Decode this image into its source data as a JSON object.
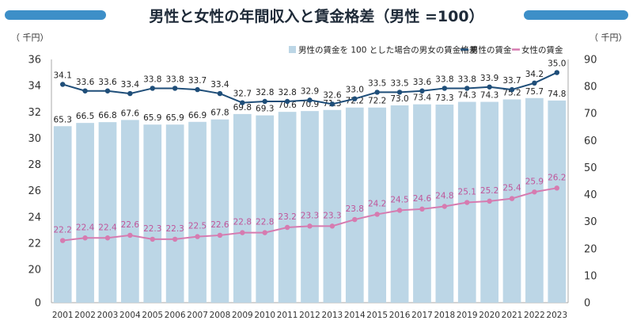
{
  "chart_data": {
    "type": "bar+line",
    "title": "男性と女性の年間収入と賃金格差（男性 =100）",
    "left_unit": "（ 千円）",
    "right_unit": "（ 千円）",
    "left_axis": {
      "min": 0,
      "max": 36,
      "ticks": [
        "0",
        "20",
        "22",
        "24",
        "26",
        "28",
        "30",
        "32",
        "34",
        "36"
      ]
    },
    "right_axis": {
      "min": 0,
      "max": 90,
      "ticks": [
        "0",
        "10",
        "20",
        "30",
        "40",
        "50",
        "60",
        "70",
        "80",
        "90"
      ]
    },
    "categories": [
      "2001",
      "2002",
      "2003",
      "2004",
      "2005",
      "2006",
      "2007",
      "2008",
      "2009",
      "2010",
      "2011",
      "2012",
      "2013",
      "2014",
      "2015",
      "2016",
      "2017",
      "2018",
      "2019",
      "2020",
      "2021",
      "2022",
      "2023"
    ],
    "series": [
      {
        "name": "男性の賃金を 100 とした場合の男女の賃金格差",
        "type": "bar",
        "axis": "right",
        "color": "#bcd6e6",
        "values": [
          65.3,
          66.5,
          66.8,
          67.6,
          65.9,
          65.9,
          66.9,
          67.8,
          69.8,
          69.3,
          70.6,
          70.9,
          71.3,
          72.2,
          72.2,
          73.0,
          73.4,
          73.3,
          74.3,
          74.3,
          75.2,
          75.7,
          74.8
        ],
        "labels": [
          "65.3",
          "66.5",
          "66.8",
          "67.6",
          "65.9",
          "65.9",
          "66.9",
          "67.8",
          "69.8",
          "69.3",
          "70.6",
          "70.9",
          "71.3",
          "72.2",
          "72.2",
          "73.0",
          "73.4",
          "73.3",
          "74.3",
          "74.3",
          "75.2",
          "75.7",
          "74.8"
        ]
      },
      {
        "name": "男性の賃金",
        "type": "line",
        "axis": "left",
        "color": "#1f4e79",
        "values": [
          34.1,
          33.6,
          33.6,
          33.4,
          33.8,
          33.8,
          33.7,
          33.4,
          32.7,
          32.8,
          32.8,
          32.9,
          32.6,
          33.0,
          33.5,
          33.5,
          33.6,
          33.8,
          33.8,
          33.9,
          33.7,
          34.2,
          35.0
        ],
        "labels": [
          "34.1",
          "33.6",
          "33.6",
          "33.4",
          "33.8",
          "33.8",
          "33.7",
          "33.4",
          "32.7",
          "32.8",
          "32.8",
          "32.9",
          "32.6",
          "33.0",
          "33.5",
          "33.5",
          "33.6",
          "33.8",
          "33.8",
          "33.9",
          "33.7",
          "34.2",
          "35.0"
        ]
      },
      {
        "name": "女性の賃金",
        "type": "line",
        "axis": "left",
        "color": "#d67bb0",
        "values": [
          22.2,
          22.4,
          22.4,
          22.6,
          22.3,
          22.3,
          22.5,
          22.6,
          22.8,
          22.8,
          23.2,
          23.3,
          23.3,
          23.8,
          24.2,
          24.5,
          24.6,
          24.8,
          25.1,
          25.2,
          25.4,
          25.9,
          26.2
        ],
        "labels": [
          "22.2",
          "22.4",
          "22.4",
          "22.6",
          "22.3",
          "22.3",
          "22.5",
          "22.6",
          "22.8",
          "22.8",
          "23.2",
          "23.3",
          "23.3",
          "23.8",
          "24.2",
          "24.5",
          "24.6",
          "24.8",
          "25.1",
          "25.2",
          "25.4",
          "25.9",
          "26.2"
        ]
      }
    ],
    "legend_position": "top-right",
    "grid": false
  }
}
